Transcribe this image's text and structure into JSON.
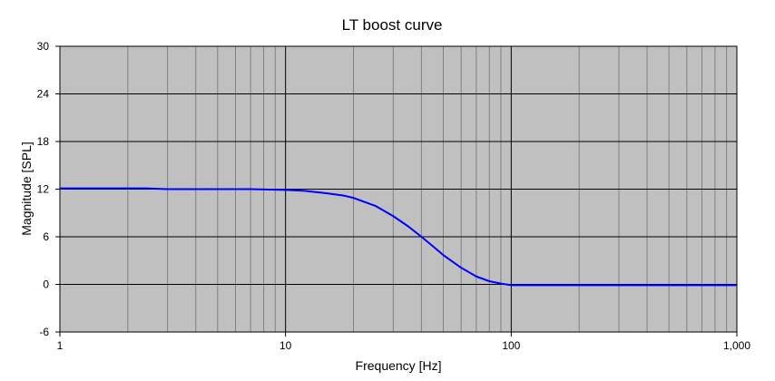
{
  "chart_data": {
    "type": "line",
    "title": "LT boost curve",
    "xlabel": "Frequency [Hz]",
    "ylabel": "Magnitude [SPL]",
    "xscale": "log",
    "xlim": [
      1,
      1000
    ],
    "ylim": [
      -6,
      30
    ],
    "x_ticks": [
      1,
      10,
      100,
      1000
    ],
    "x_tick_labels": [
      "1",
      "10",
      "100",
      "1,000"
    ],
    "y_ticks": [
      -6,
      0,
      6,
      12,
      18,
      24,
      30
    ],
    "y_tick_labels": [
      "-6",
      "0",
      "6",
      "12",
      "18",
      "24",
      "30"
    ],
    "grid": true,
    "legend": "none",
    "plot_background": "#c0c0c0",
    "grid_minor_color": "#808080",
    "grid_major_color": "#000000",
    "series": [
      {
        "color": "#0000ff",
        "x": [
          1,
          1.5,
          2,
          2.4,
          3,
          5,
          7,
          10,
          12,
          15,
          18,
          20,
          25,
          30,
          35,
          40,
          45,
          50,
          60,
          70,
          80,
          90,
          100,
          150,
          200,
          250,
          300,
          500,
          1000
        ],
        "y": [
          12.1,
          12.1,
          12.1,
          12.1,
          12.0,
          12.0,
          12.0,
          11.9,
          11.8,
          11.5,
          11.2,
          10.9,
          9.9,
          8.6,
          7.3,
          6.0,
          4.8,
          3.7,
          2.1,
          1.0,
          0.4,
          0.1,
          -0.1,
          -0.1,
          -0.1,
          -0.1,
          -0.1,
          -0.1,
          -0.1
        ]
      }
    ]
  }
}
